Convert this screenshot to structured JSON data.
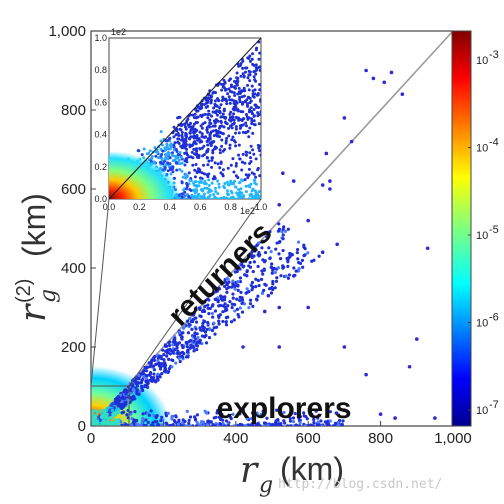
{
  "chart_data": {
    "type": "scatter",
    "main": {
      "xlabel_symbol": "r",
      "xlabel_sub": "g",
      "xlabel_unit": "(km)",
      "ylabel_symbol": "r",
      "ylabel_sub": "g",
      "ylabel_sup": "(2)",
      "ylabel_unit": "(km)",
      "xlim": [
        0,
        1000
      ],
      "ylim": [
        0,
        1000
      ],
      "xticks": [
        "0",
        "200",
        "400",
        "600",
        "800",
        "1,000"
      ],
      "yticks": [
        "0",
        "200",
        "400",
        "600",
        "800",
        "1,000"
      ],
      "diagonal": [
        [
          0,
          0
        ],
        [
          1000,
          1000
        ]
      ],
      "annotations": [
        "returners",
        "explorers"
      ],
      "sample_points": [
        [
          760,
          900
        ],
        [
          780,
          880
        ],
        [
          810,
          870
        ],
        [
          830,
          895
        ],
        [
          860,
          840
        ],
        [
          720,
          720
        ],
        [
          700,
          780
        ],
        [
          650,
          690
        ],
        [
          660,
          620
        ],
        [
          640,
          610
        ],
        [
          660,
          600
        ],
        [
          560,
          620
        ],
        [
          530,
          640
        ],
        [
          520,
          560
        ],
        [
          600,
          520
        ],
        [
          680,
          460
        ],
        [
          640,
          440
        ],
        [
          550,
          430
        ],
        [
          560,
          380
        ],
        [
          600,
          300
        ],
        [
          460,
          480
        ],
        [
          490,
          330
        ],
        [
          480,
          290
        ],
        [
          520,
          200
        ],
        [
          420,
          200
        ],
        [
          700,
          200
        ],
        [
          880,
          150
        ],
        [
          900,
          220
        ],
        [
          930,
          450
        ],
        [
          760,
          130
        ],
        [
          520,
          300
        ],
        [
          950,
          20
        ],
        [
          840,
          20
        ],
        [
          800,
          30
        ],
        [
          700,
          40
        ]
      ]
    },
    "inset": {
      "xlim": [
        0,
        1.0
      ],
      "ylim": [
        0,
        1.0
      ],
      "xticks": [
        "0.0",
        "0.2",
        "0.4",
        "0.6",
        "0.8",
        "1.0"
      ],
      "yticks": [
        "0.0",
        "0.2",
        "0.4",
        "0.6",
        "0.8",
        "1.0"
      ],
      "x_multiplier": "1e2",
      "y_multiplier": "1e2"
    },
    "colorbar": {
      "colormap": "jet",
      "ticks": [
        "10",
        "10",
        "10",
        "10",
        "10"
      ],
      "exponents": [
        "-3",
        "-4",
        "-5",
        "-6",
        "-7"
      ]
    }
  },
  "watermark": "http://blog.csdn.net/"
}
